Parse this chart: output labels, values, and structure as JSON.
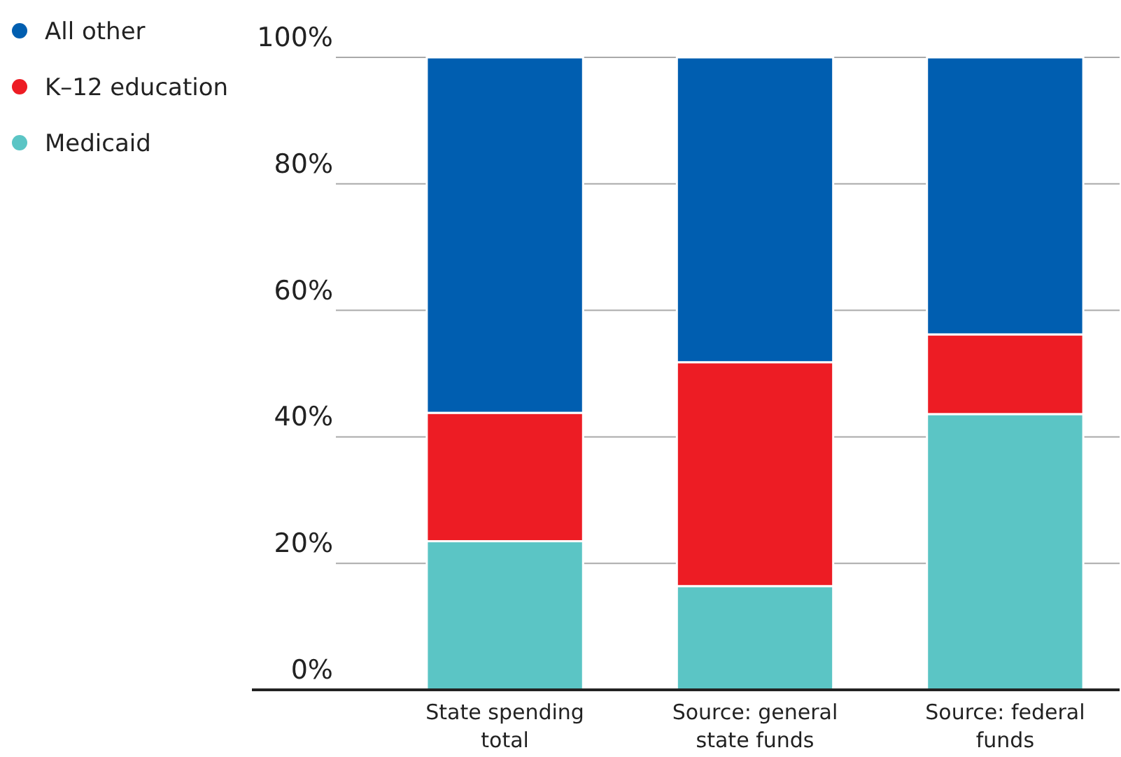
{
  "chart_data": {
    "type": "bar",
    "stacked": true,
    "categories": [
      "State spending total",
      "Source: general state funds",
      "Source: federal funds"
    ],
    "series": [
      {
        "name": "Medicaid",
        "color": "#5bc5c5",
        "values": [
          23.5,
          16.4,
          43.6
        ]
      },
      {
        "name": "K–12 education",
        "color": "#ed1c24",
        "values": [
          20.3,
          35.4,
          12.6
        ]
      },
      {
        "name": "All other",
        "color": "#005eb0",
        "values": [
          56.2,
          48.2,
          43.8
        ]
      }
    ],
    "ylim": [
      0,
      100
    ],
    "yticks": [
      {
        "value": 0,
        "label": "0%"
      },
      {
        "value": 20,
        "label": "20%"
      },
      {
        "value": 40,
        "label": "40%"
      },
      {
        "value": 60,
        "label": "60%"
      },
      {
        "value": 80,
        "label": "80%"
      },
      {
        "value": 100,
        "label": "100%"
      }
    ],
    "grid": "y",
    "legend": "left"
  }
}
